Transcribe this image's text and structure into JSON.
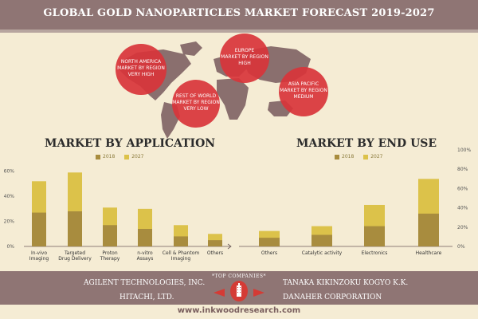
{
  "title": "GLOBAL GOLD NANOPARTICLES MARKET FORECAST 2019-2027",
  "colors": {
    "bar2018": "#a88c3e",
    "bar2027": "#dcc24a",
    "bubble": "#d8343a",
    "header": "#8f7574",
    "map": "#8a6f6e"
  },
  "regions": [
    {
      "lines": [
        "NORTH AMERICA",
        "MARKET BY REGION",
        "VERY HIGH"
      ]
    },
    {
      "lines": [
        "EUROPE",
        "MARKET BY REGION",
        "HIGH"
      ]
    },
    {
      "lines": [
        "REST OF WORLD",
        "MARKET BY REGION",
        "VERY LOW"
      ]
    },
    {
      "lines": [
        "ASIA PACIFIC",
        "MARKET BY REGION",
        "MEDIUM"
      ]
    }
  ],
  "application": {
    "title": "MARKET BY APPLICATION",
    "legend": [
      "2018",
      "2027"
    ]
  },
  "end_use": {
    "title": "MARKET BY END USE",
    "legend": [
      "2018",
      "2027"
    ]
  },
  "chart_data": [
    {
      "type": "bar",
      "title": "MARKET BY APPLICATION",
      "categories": [
        [
          "In-vivo",
          "Imaging"
        ],
        [
          "Targeted",
          "Drug Delivery"
        ],
        [
          "Proton",
          "Therapy"
        ],
        [
          "n-vitro",
          "Assays"
        ],
        [
          "Cell & Phantom",
          "Imaging"
        ],
        [
          "Others"
        ]
      ],
      "series": [
        {
          "name": "2018",
          "values": [
            27,
            28,
            17,
            14,
            8,
            5
          ]
        },
        {
          "name": "2027",
          "values": [
            52,
            59,
            31,
            30,
            17,
            10
          ]
        }
      ],
      "yticks": [
        "0%",
        "20%",
        "40%",
        "60%"
      ],
      "ylim": [
        0,
        70
      ],
      "legend_position": "top"
    },
    {
      "type": "bar",
      "title": "MARKET BY END USE",
      "categories": [
        [
          "Others"
        ],
        [
          "Catalytic activity"
        ],
        [
          "Electronics"
        ],
        [
          "Healthcare"
        ]
      ],
      "series": [
        {
          "name": "2018",
          "values": [
            9,
            12,
            21,
            34
          ]
        },
        {
          "name": "2027",
          "values": [
            16,
            21,
            43,
            70
          ]
        }
      ],
      "yticks": [
        "0%",
        "20%",
        "40%",
        "60%",
        "80%",
        "100%"
      ],
      "ylim": [
        0,
        100
      ],
      "legend_position": "top"
    }
  ],
  "top_companies_label": "*TOP COMPANIES*",
  "companies": [
    "AGILENT TECHNOLOGIES, INC.",
    "TANAKA KIKINZOKU KOGYO K.K.",
    "HITACHI, LTD.",
    "DANAHER CORPORATION"
  ],
  "website": "www.inkwoodresearch.com"
}
